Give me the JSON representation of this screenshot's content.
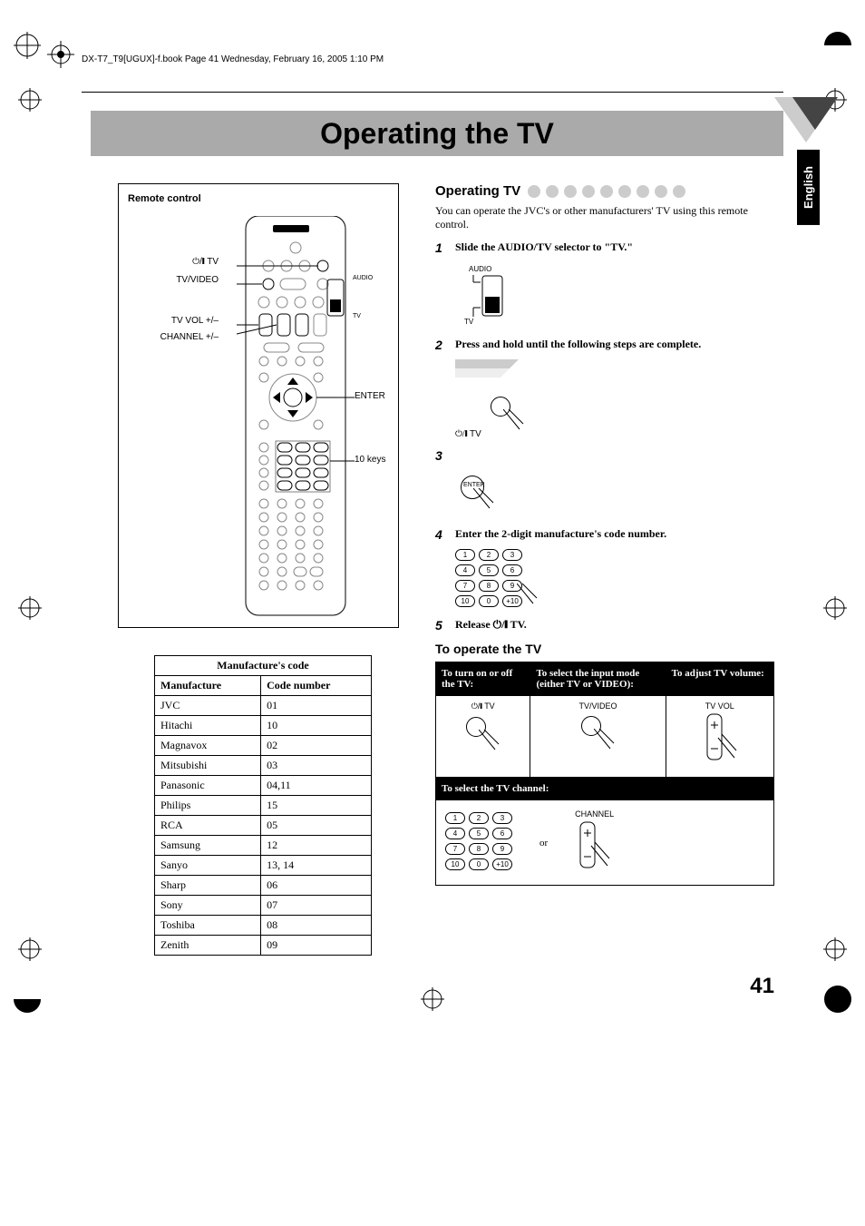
{
  "header_line": "DX-T7_T9[UGUX]-f.book  Page 41  Wednesday, February 16, 2005  1:10 PM",
  "title": "Operating the TV",
  "lang_tab": "English",
  "remote": {
    "box_title": "Remote control",
    "labels": {
      "power_tv": "TV",
      "tv_video": "TV/VIDEO",
      "tv_vol": "TV VOL +/–",
      "channel": "CHANNEL +/–",
      "enter": "ENTER",
      "keys10": "10 keys",
      "audio": "AUDIO",
      "tv": "TV"
    }
  },
  "code_table": {
    "title": "Manufacture's code",
    "col_manufacture": "Manufacture",
    "col_code": "Code number",
    "rows": [
      {
        "m": "JVC",
        "c": "01"
      },
      {
        "m": "Hitachi",
        "c": "10"
      },
      {
        "m": "Magnavox",
        "c": "02"
      },
      {
        "m": "Mitsubishi",
        "c": "03"
      },
      {
        "m": "Panasonic",
        "c": "04,11"
      },
      {
        "m": "Philips",
        "c": "15"
      },
      {
        "m": "RCA",
        "c": "05"
      },
      {
        "m": "Samsung",
        "c": "12"
      },
      {
        "m": "Sanyo",
        "c": "13, 14"
      },
      {
        "m": "Sharp",
        "c": "06"
      },
      {
        "m": "Sony",
        "c": "07"
      },
      {
        "m": "Toshiba",
        "c": "08"
      },
      {
        "m": "Zenith",
        "c": "09"
      }
    ]
  },
  "right": {
    "section_title": "Operating TV",
    "intro": "You can operate the JVC's or other manufacturers' TV using this remote control.",
    "steps": {
      "s1": "Slide the AUDIO/TV selector to \"TV.\"",
      "s1_audio": "AUDIO",
      "s1_tv": "TV",
      "s2": "Press and hold until the following steps are complete.",
      "s2_label": "TV",
      "s3_label": "ENTER",
      "s4": "Enter the 2-digit manufacture's code number.",
      "s5_pre": "Release ",
      "s5_post": " TV."
    },
    "operate_heading": "To operate the TV",
    "op_table": {
      "h1": "To turn on or off the TV:",
      "h2": "To select the input mode (either TV or VIDEO):",
      "h3": "To adjust TV volume:",
      "h4": "To select the TV channel:",
      "tv_label": "TV",
      "tvvideo_label": "TV/VIDEO",
      "tvvol_label": "TV VOL",
      "or": "or",
      "channel_label": "CHANNEL"
    }
  },
  "page_number": "41",
  "colors": {
    "title_bg": "#aaaaaa",
    "dot": "#cccccc",
    "triangle_dark": "#444444",
    "triangle_light": "#cccccc"
  }
}
